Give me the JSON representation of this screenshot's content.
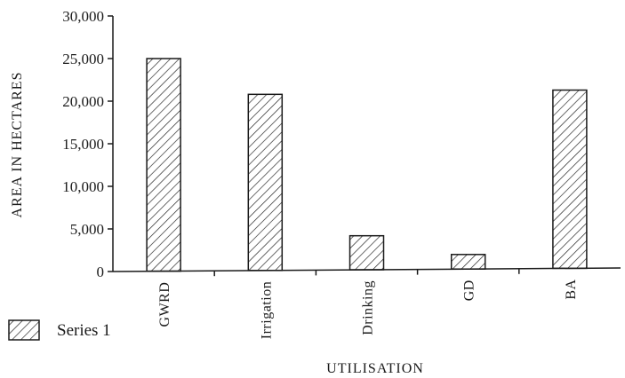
{
  "chart_data": {
    "type": "bar",
    "categories": [
      "GWRD",
      "Irrigation",
      "Drinking",
      "GD",
      "BA"
    ],
    "series": [
      {
        "name": "Series 1",
        "values": [
          25000,
          20800,
          4200,
          2000,
          21300
        ]
      }
    ],
    "xlabel": "UTILISATION",
    "ylabel": "AREA IN HECTARES",
    "ylim": [
      0,
      30000
    ],
    "yticks": [
      0,
      5000,
      10000,
      15000,
      20000,
      25000,
      30000
    ],
    "ytick_labels": [
      "0",
      "5,000",
      "10,000",
      "15,000",
      "20,000",
      "25,000",
      "30,000"
    ],
    "bar_fill": "diagonal-hatch",
    "bar_color": "#1a1a1a",
    "grid": false,
    "legend": {
      "position": "bottom-left",
      "entries": [
        "Series 1"
      ]
    }
  }
}
